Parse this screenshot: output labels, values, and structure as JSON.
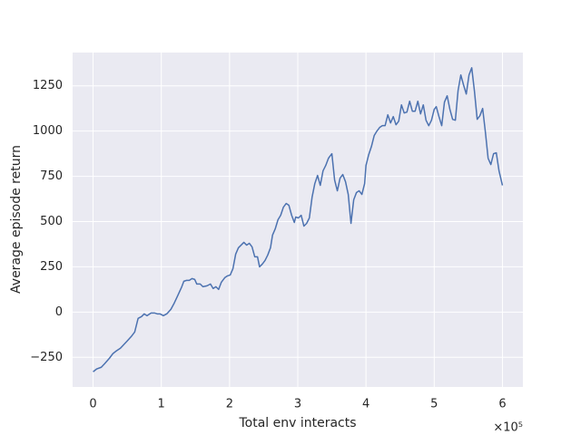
{
  "chart_data": {
    "type": "line",
    "x_label": "Total env interacts",
    "y_label": "Average episode return",
    "x_offset_label": "×10⁵",
    "grid": true,
    "xlim": [
      -30000,
      630000
    ],
    "ylim": [
      -414,
      1434
    ],
    "xticks": [
      {
        "value": 0,
        "label": "0"
      },
      {
        "value": 100000,
        "label": "1"
      },
      {
        "value": 200000,
        "label": "2"
      },
      {
        "value": 300000,
        "label": "3"
      },
      {
        "value": 400000,
        "label": "4"
      },
      {
        "value": 500000,
        "label": "5"
      },
      {
        "value": 600000,
        "label": "6"
      }
    ],
    "yticks": [
      {
        "value": -250,
        "label": "−250"
      },
      0,
      250,
      500,
      750,
      1000,
      1250
    ],
    "x": [
      0,
      5000,
      12000,
      17000,
      24000,
      29000,
      34000,
      40000,
      45000,
      50000,
      56000,
      61000,
      66000,
      71000,
      75000,
      79000,
      85000,
      90000,
      94000,
      98000,
      103000,
      108000,
      114000,
      119000,
      124000,
      130000,
      133000,
      137000,
      141000,
      145000,
      149000,
      152000,
      157000,
      161000,
      167000,
      172000,
      176000,
      180000,
      184000,
      188000,
      193000,
      197000,
      201000,
      205000,
      209000,
      213000,
      217000,
      221000,
      225000,
      229000,
      233000,
      237000,
      241000,
      244000,
      248000,
      252000,
      256000,
      260000,
      263000,
      267000,
      271000,
      275000,
      279000,
      283000,
      287000,
      291000,
      295000,
      297000,
      301000,
      305000,
      309000,
      313000,
      317000,
      321000,
      325000,
      329000,
      333000,
      337000,
      341000,
      345000,
      350000,
      354000,
      358000,
      362000,
      366000,
      370000,
      374000,
      378000,
      382000,
      386000,
      390000,
      394000,
      398000,
      400000,
      404000,
      408000,
      412000,
      416000,
      420000,
      424000,
      428000,
      432000,
      436000,
      440000,
      444000,
      448000,
      452000,
      456000,
      460000,
      464000,
      468000,
      472000,
      476000,
      480000,
      484000,
      488000,
      492000,
      496000,
      500000,
      503000,
      507000,
      511000,
      515000,
      519000,
      523000,
      527000,
      531000,
      535000,
      539000,
      543000,
      547000,
      551000,
      555000,
      559000,
      563000,
      567000,
      571000,
      575000,
      579000,
      583000,
      587000,
      591000,
      595000,
      600000
    ],
    "series": [
      {
        "color": "#4c72b0",
        "values": [
          -330,
          -315,
          -305,
          -285,
          -255,
          -230,
          -215,
          -200,
          -180,
          -160,
          -135,
          -110,
          -35,
          -25,
          -10,
          -20,
          -5,
          -5,
          -10,
          -10,
          -20,
          -10,
          15,
          50,
          90,
          140,
          170,
          175,
          175,
          185,
          180,
          155,
          155,
          140,
          145,
          155,
          130,
          140,
          125,
          165,
          190,
          200,
          205,
          240,
          320,
          355,
          370,
          385,
          370,
          380,
          360,
          305,
          305,
          250,
          265,
          285,
          315,
          355,
          425,
          460,
          510,
          535,
          580,
          600,
          590,
          535,
          495,
          525,
          520,
          535,
          475,
          490,
          520,
          635,
          710,
          755,
          700,
          780,
          810,
          850,
          875,
          730,
          670,
          740,
          760,
          720,
          650,
          490,
          620,
          660,
          670,
          650,
          710,
          810,
          870,
          915,
          975,
          1000,
          1020,
          1030,
          1030,
          1090,
          1045,
          1080,
          1035,
          1055,
          1145,
          1100,
          1105,
          1165,
          1110,
          1110,
          1165,
          1095,
          1145,
          1060,
          1030,
          1060,
          1120,
          1135,
          1080,
          1030,
          1160,
          1195,
          1120,
          1065,
          1060,
          1225,
          1310,
          1255,
          1205,
          1310,
          1350,
          1220,
          1065,
          1085,
          1125,
          995,
          850,
          815,
          875,
          880,
          780,
          700
        ]
      }
    ]
  }
}
